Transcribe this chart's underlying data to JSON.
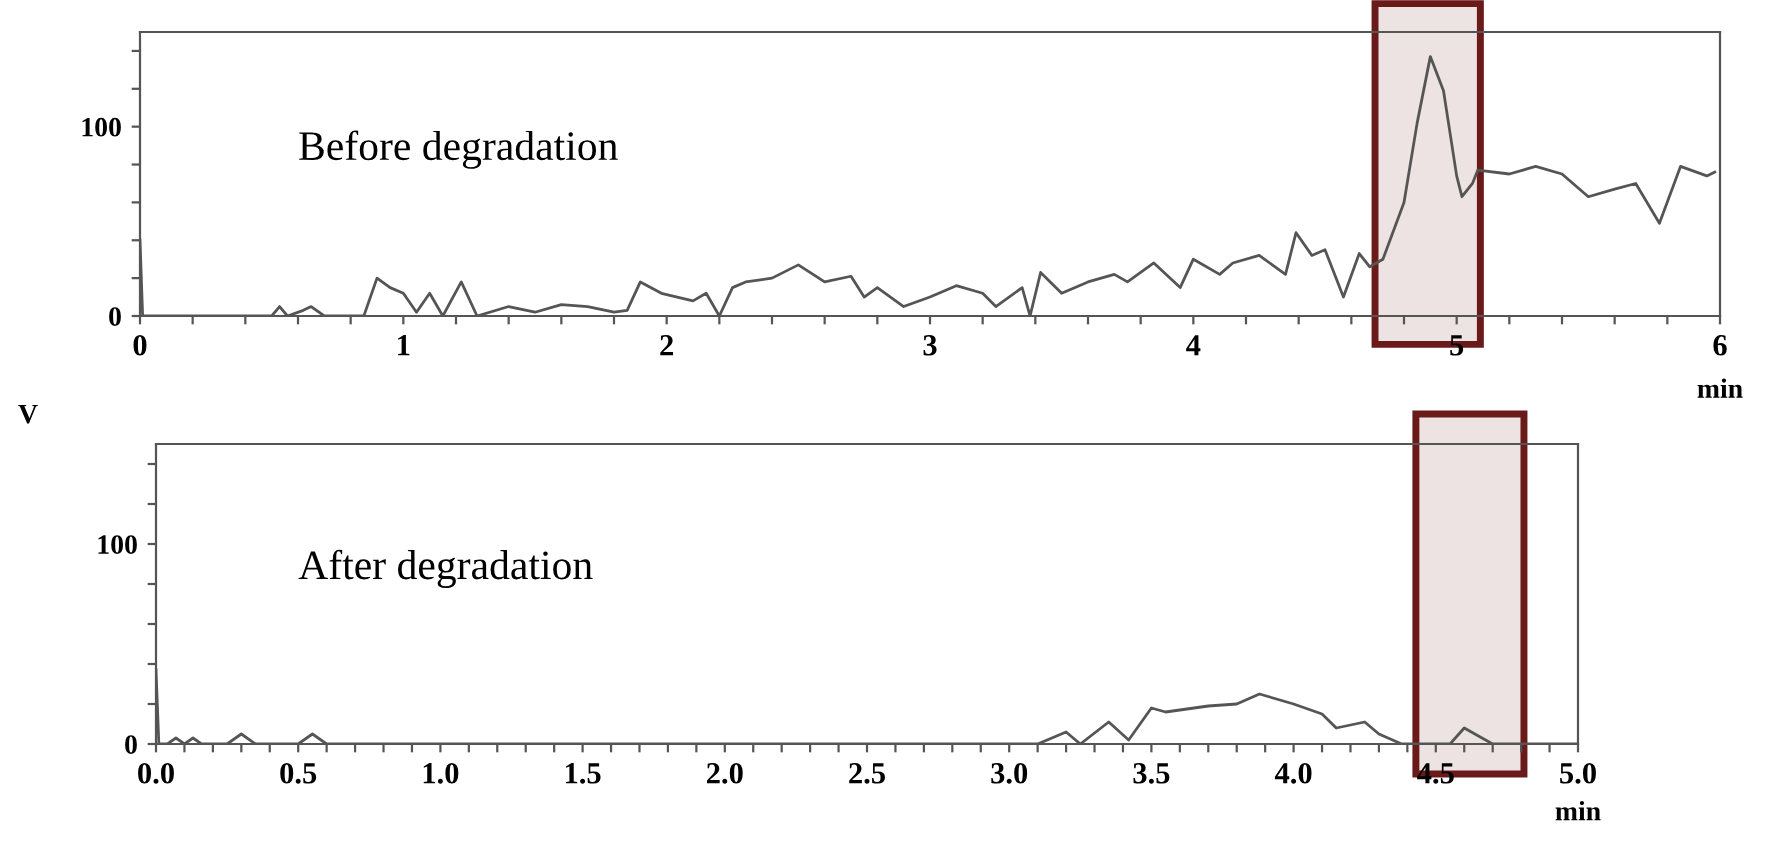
{
  "chart_data": [
    {
      "type": "line",
      "annotations": [
        "Before degradation"
      ],
      "xlabel": "min",
      "xlim": [
        0,
        6
      ],
      "ylim": [
        0,
        150
      ],
      "xticks": [
        0,
        {
          "value": 0.2,
          "label": null
        },
        {
          "value": 0.4,
          "label": null
        },
        {
          "value": 0.6,
          "label": null
        },
        {
          "value": 0.8,
          "label": null
        },
        1,
        {
          "value": 1.2,
          "label": null
        },
        {
          "value": 1.4,
          "label": null
        },
        {
          "value": 1.6,
          "label": null
        },
        {
          "value": 1.8,
          "label": null
        },
        2,
        {
          "value": 2.2,
          "label": null
        },
        {
          "value": 2.4,
          "label": null
        },
        {
          "value": 2.6,
          "label": null
        },
        {
          "value": 2.8,
          "label": null
        },
        3,
        {
          "value": 3.2,
          "label": null
        },
        {
          "value": 3.4,
          "label": null
        },
        {
          "value": 3.6,
          "label": null
        },
        {
          "value": 3.8,
          "label": null
        },
        4,
        {
          "value": 4.2,
          "label": null
        },
        {
          "value": 4.4,
          "label": null
        },
        {
          "value": 4.6,
          "label": null
        },
        {
          "value": 4.8,
          "label": null
        },
        5,
        {
          "value": 5.2,
          "label": null
        },
        {
          "value": 5.4,
          "label": null
        },
        {
          "value": 5.6,
          "label": null
        },
        {
          "value": 5.8,
          "label": null
        },
        6
      ],
      "yticks": [
        0,
        {
          "value": 20,
          "label": null
        },
        {
          "value": 40,
          "label": null
        },
        {
          "value": 60,
          "label": null
        },
        {
          "value": 80,
          "label": null
        },
        100,
        {
          "value": 120,
          "label": null
        },
        {
          "value": 140,
          "label": null
        }
      ],
      "grid": false,
      "marker": "none",
      "line_style": "solid",
      "bands": [
        {
          "axis": "x",
          "from": 4.69,
          "to": 5.09,
          "label": null,
          "color": "#6b1a1a"
        }
      ],
      "series": [
        {
          "color": "#555555",
          "x": [
            0,
            0.01,
            0.5,
            0.53,
            0.56,
            0.62,
            0.65,
            0.7,
            0.85,
            0.9,
            0.95,
            1.0,
            1.05,
            1.1,
            1.15,
            1.22,
            1.28,
            1.4,
            1.5,
            1.6,
            1.7,
            1.8,
            1.85,
            1.9,
            1.98,
            2.1,
            2.15,
            2.2,
            2.25,
            2.3,
            2.4,
            2.5,
            2.6,
            2.7,
            2.75,
            2.8,
            2.9,
            3.0,
            3.1,
            3.2,
            3.25,
            3.35,
            3.38,
            3.42,
            3.5,
            3.6,
            3.7,
            3.75,
            3.85,
            3.95,
            4.0,
            4.1,
            4.15,
            4.25,
            4.35,
            4.39,
            4.45,
            4.5,
            4.57,
            4.63,
            4.67,
            4.72,
            4.8,
            4.85,
            4.9,
            4.95,
            5.0,
            5.02,
            5.06,
            5.08,
            5.2,
            5.3,
            5.4,
            5.5,
            5.6,
            5.68,
            5.77,
            5.85,
            5.95,
            5.98
          ],
          "values": [
            40,
            0,
            0,
            5,
            0,
            3,
            5,
            0,
            0,
            20,
            15,
            12,
            2,
            12,
            0,
            18,
            0,
            5,
            2,
            6,
            5,
            2,
            3,
            18,
            12,
            8,
            12,
            0,
            15,
            18,
            20,
            27,
            18,
            21,
            10,
            15,
            5,
            10,
            16,
            12,
            5,
            15,
            0,
            23,
            12,
            18,
            22,
            18,
            28,
            15,
            30,
            22,
            28,
            32,
            22,
            44,
            32,
            35,
            10,
            33,
            26,
            30,
            60,
            102,
            137,
            119,
            74,
            63,
            70,
            77,
            75,
            79,
            75,
            63,
            67,
            70,
            49,
            79,
            74,
            76
          ]
        }
      ]
    },
    {
      "type": "line",
      "annotations": [
        "After degradation"
      ],
      "xlabel": "min",
      "ylabel": "V",
      "xlim": [
        0,
        5
      ],
      "ylim": [
        0,
        150
      ],
      "xticks": [
        {
          "value": 0,
          "label": "0.0"
        },
        {
          "value": 0.1,
          "label": null
        },
        {
          "value": 0.2,
          "label": null
        },
        {
          "value": 0.3,
          "label": null
        },
        {
          "value": 0.4,
          "label": null
        },
        0.5,
        {
          "value": 0.6,
          "label": null
        },
        {
          "value": 0.7,
          "label": null
        },
        {
          "value": 0.8,
          "label": null
        },
        {
          "value": 0.9,
          "label": null
        },
        {
          "value": 1,
          "label": "1.0"
        },
        {
          "value": 1.1,
          "label": null
        },
        {
          "value": 1.2,
          "label": null
        },
        {
          "value": 1.3,
          "label": null
        },
        {
          "value": 1.4,
          "label": null
        },
        1.5,
        {
          "value": 1.6,
          "label": null
        },
        {
          "value": 1.7,
          "label": null
        },
        {
          "value": 1.8,
          "label": null
        },
        {
          "value": 1.9,
          "label": null
        },
        {
          "value": 2,
          "label": "2.0"
        },
        {
          "value": 2.1,
          "label": null
        },
        {
          "value": 2.2,
          "label": null
        },
        {
          "value": 2.3,
          "label": null
        },
        {
          "value": 2.4,
          "label": null
        },
        2.5,
        {
          "value": 2.6,
          "label": null
        },
        {
          "value": 2.7,
          "label": null
        },
        {
          "value": 2.8,
          "label": null
        },
        {
          "value": 2.9,
          "label": null
        },
        {
          "value": 3,
          "label": "3.0"
        },
        {
          "value": 3.1,
          "label": null
        },
        {
          "value": 3.2,
          "label": null
        },
        {
          "value": 3.3,
          "label": null
        },
        {
          "value": 3.4,
          "label": null
        },
        3.5,
        {
          "value": 3.6,
          "label": null
        },
        {
          "value": 3.7,
          "label": null
        },
        {
          "value": 3.8,
          "label": null
        },
        {
          "value": 3.9,
          "label": null
        },
        {
          "value": 4,
          "label": "4.0"
        },
        {
          "value": 4.1,
          "label": null
        },
        {
          "value": 4.2,
          "label": null
        },
        {
          "value": 4.3,
          "label": null
        },
        {
          "value": 4.4,
          "label": null
        },
        4.5,
        {
          "value": 4.6,
          "label": null
        },
        {
          "value": 4.7,
          "label": null
        },
        {
          "value": 4.8,
          "label": null
        },
        {
          "value": 4.9,
          "label": null
        },
        {
          "value": 5,
          "label": "5.0"
        }
      ],
      "yticks": [
        0,
        {
          "value": 20,
          "label": null
        },
        {
          "value": 40,
          "label": null
        },
        {
          "value": 60,
          "label": null
        },
        {
          "value": 80,
          "label": null
        },
        100,
        {
          "value": 120,
          "label": null
        },
        {
          "value": 140,
          "label": null
        }
      ],
      "grid": false,
      "marker": "none",
      "line_style": "solid",
      "bands": [
        {
          "axis": "x",
          "from": 4.43,
          "to": 4.81,
          "label": null,
          "color": "#6b1a1a"
        }
      ],
      "series": [
        {
          "color": "#555555",
          "x": [
            0,
            0.01,
            0.04,
            0.07,
            0.1,
            0.13,
            0.16,
            0.25,
            0.3,
            0.35,
            0.5,
            0.55,
            0.6,
            3.1,
            3.2,
            3.25,
            3.35,
            3.42,
            3.5,
            3.55,
            3.7,
            3.8,
            3.88,
            4.0,
            4.1,
            4.15,
            4.25,
            4.3,
            4.38,
            4.55,
            4.6,
            4.7,
            5.0
          ],
          "values": [
            37,
            0,
            0,
            3,
            0,
            3,
            0,
            0,
            5,
            0,
            0,
            5,
            0,
            0,
            6,
            0,
            11,
            2,
            18,
            16,
            19,
            20,
            25,
            20,
            15,
            8,
            11,
            5,
            0,
            0,
            8,
            0,
            0
          ]
        }
      ]
    }
  ]
}
